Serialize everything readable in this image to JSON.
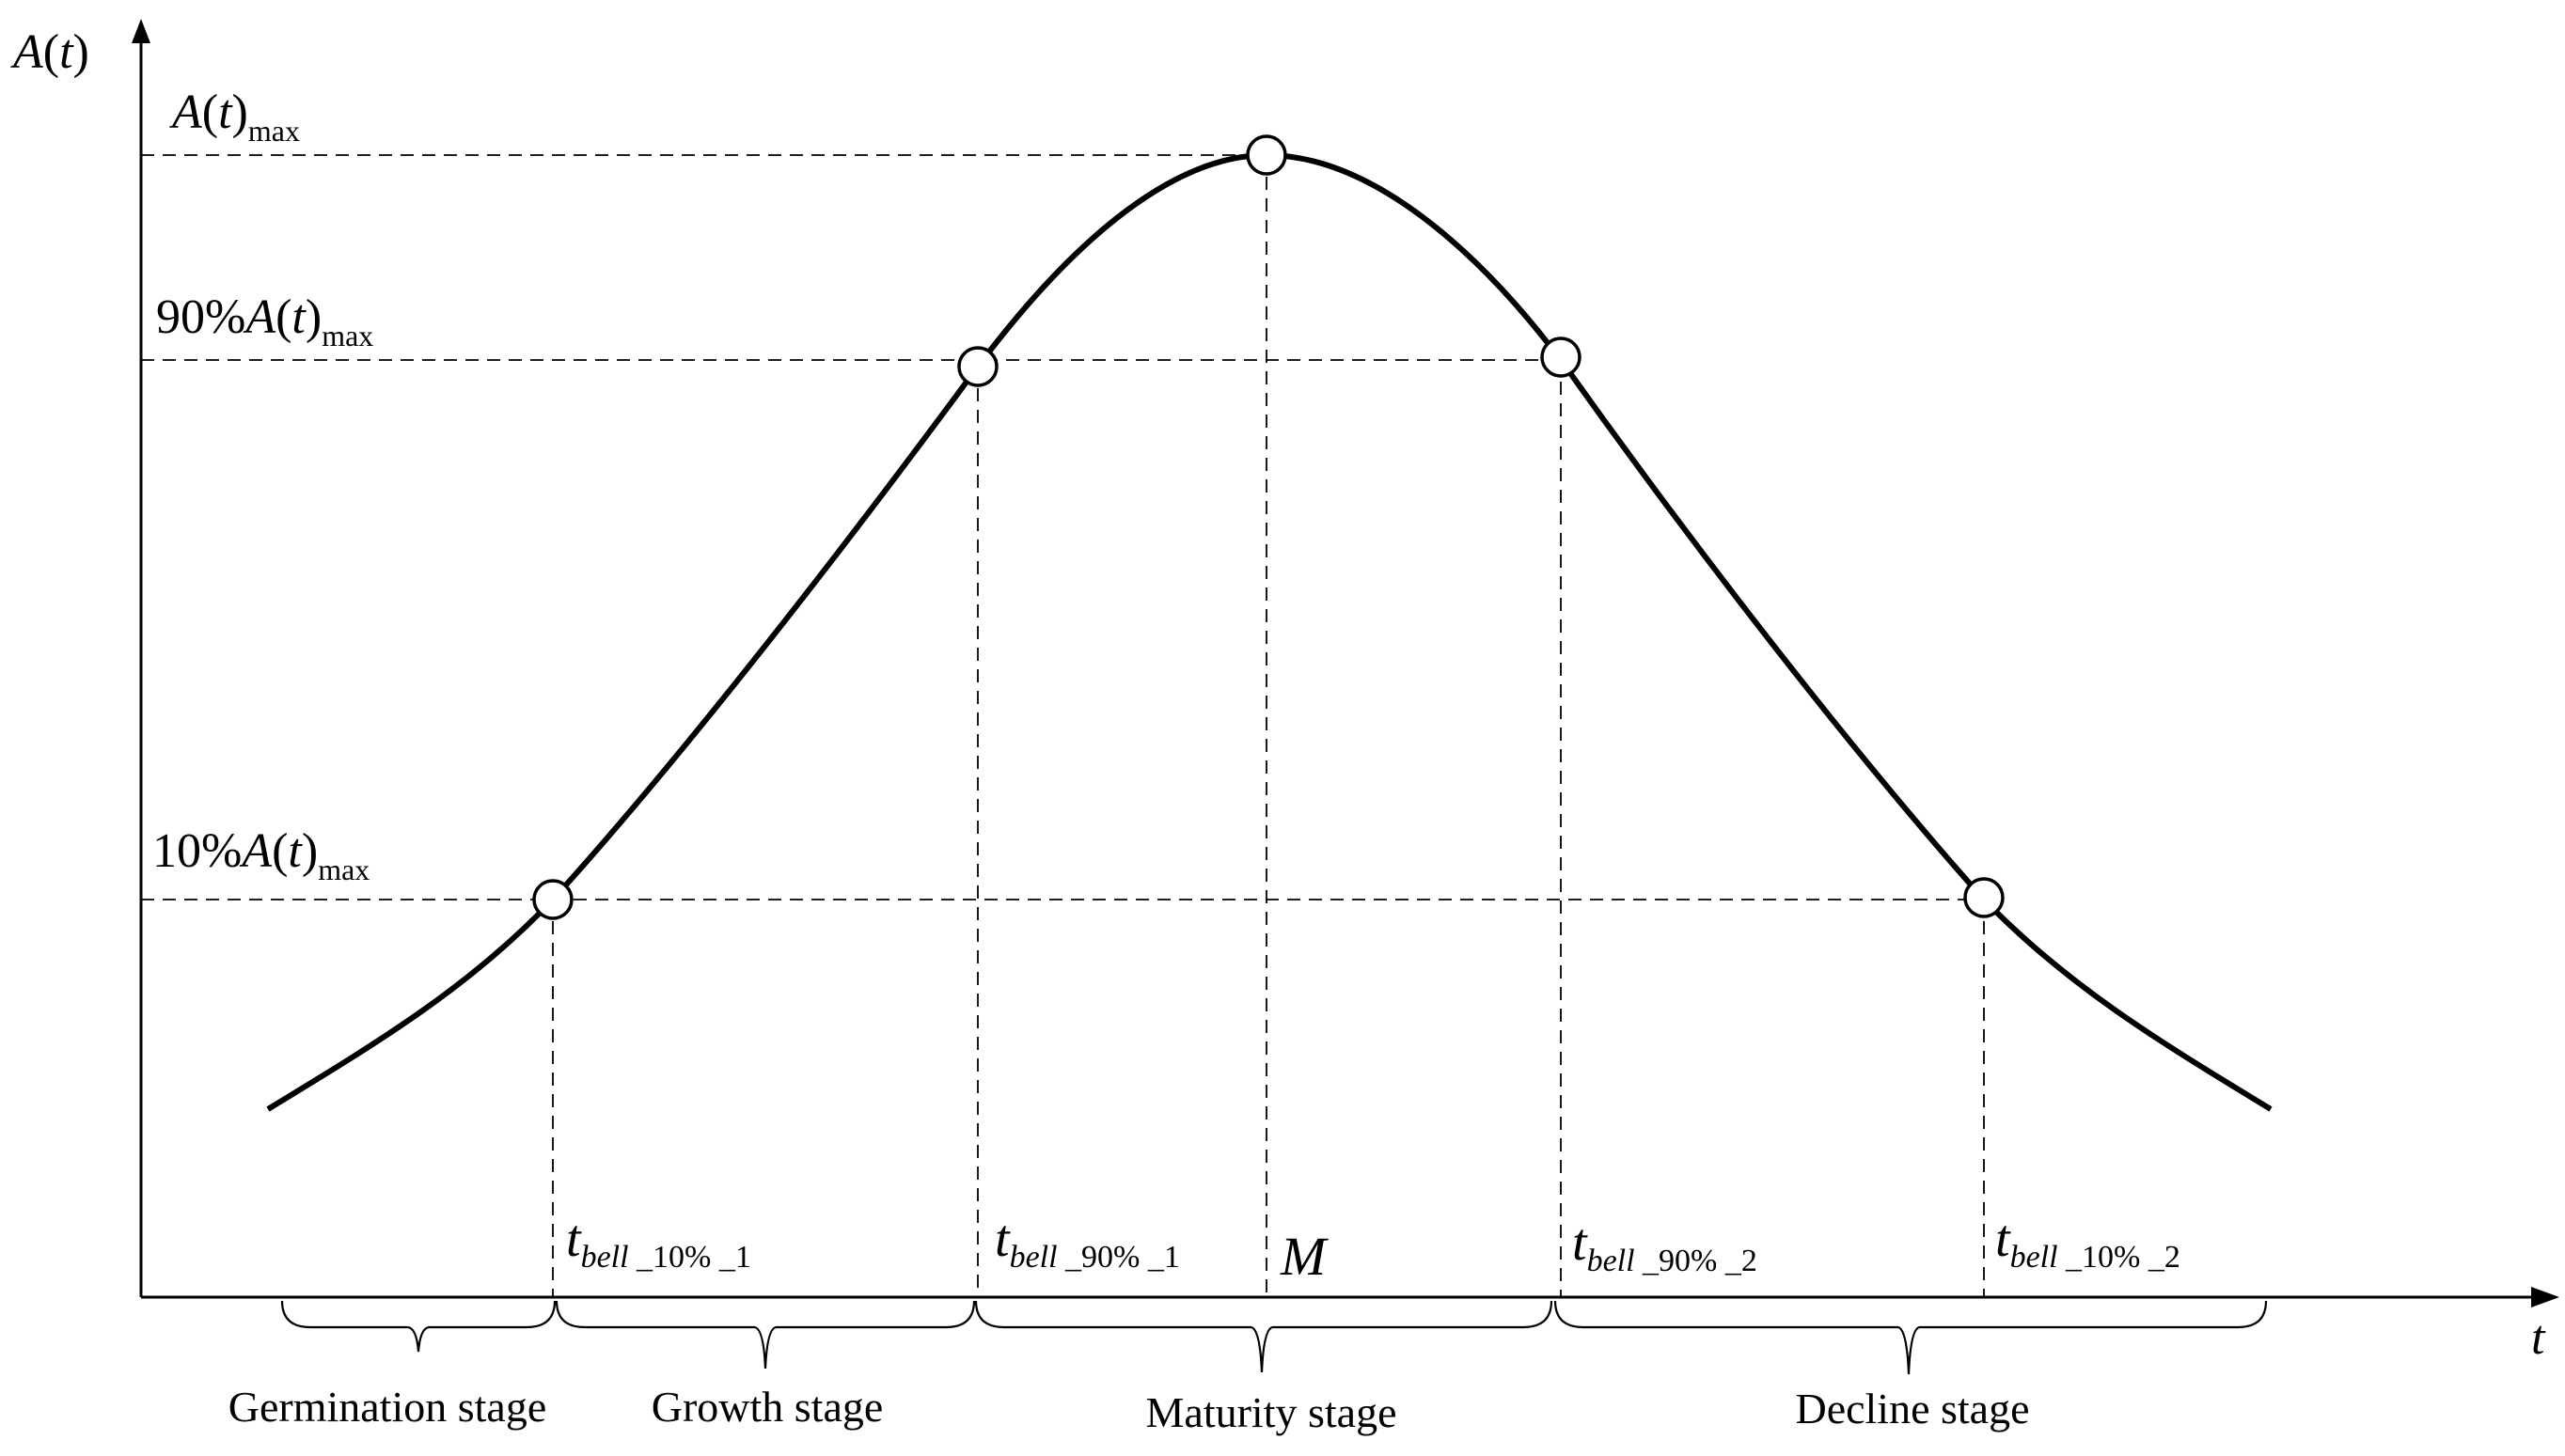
{
  "axes": {
    "y_label": {
      "main": "A",
      "paren_open": "(",
      "var": "t",
      "paren_close": ")"
    },
    "x_label": "t"
  },
  "levels": [
    {
      "id": "max",
      "prefix": "",
      "A": "A",
      "open": "(",
      "t": "t",
      "close": ")",
      "sub": "max"
    },
    {
      "id": "p90",
      "prefix": "90%",
      "A": "A",
      "open": "(",
      "t": "t",
      "close": ")",
      "sub": "max"
    },
    {
      "id": "p10",
      "prefix": "10%",
      "A": "A",
      "open": "(",
      "t": "t",
      "close": ")",
      "sub": "max"
    }
  ],
  "time_markers": [
    {
      "id": "t10_1",
      "t": "t",
      "sub_italic": "bell",
      "sub_rest": " _10% _1"
    },
    {
      "id": "t90_1",
      "t": "t",
      "sub_italic": "bell",
      "sub_rest": " _90% _1"
    },
    {
      "id": "peak",
      "label": "M"
    },
    {
      "id": "t90_2",
      "t": "t",
      "sub_italic": "bell",
      "sub_rest": " _90% _2"
    },
    {
      "id": "t10_2",
      "t": "t",
      "sub_italic": "bell",
      "sub_rest": " _10% _2"
    }
  ],
  "stages": [
    {
      "id": "germination",
      "label": "Germination stage"
    },
    {
      "id": "growth",
      "label": "Growth stage"
    },
    {
      "id": "maturity",
      "label": "Maturity stage"
    },
    {
      "id": "decline",
      "label": "Decline stage"
    }
  ]
}
